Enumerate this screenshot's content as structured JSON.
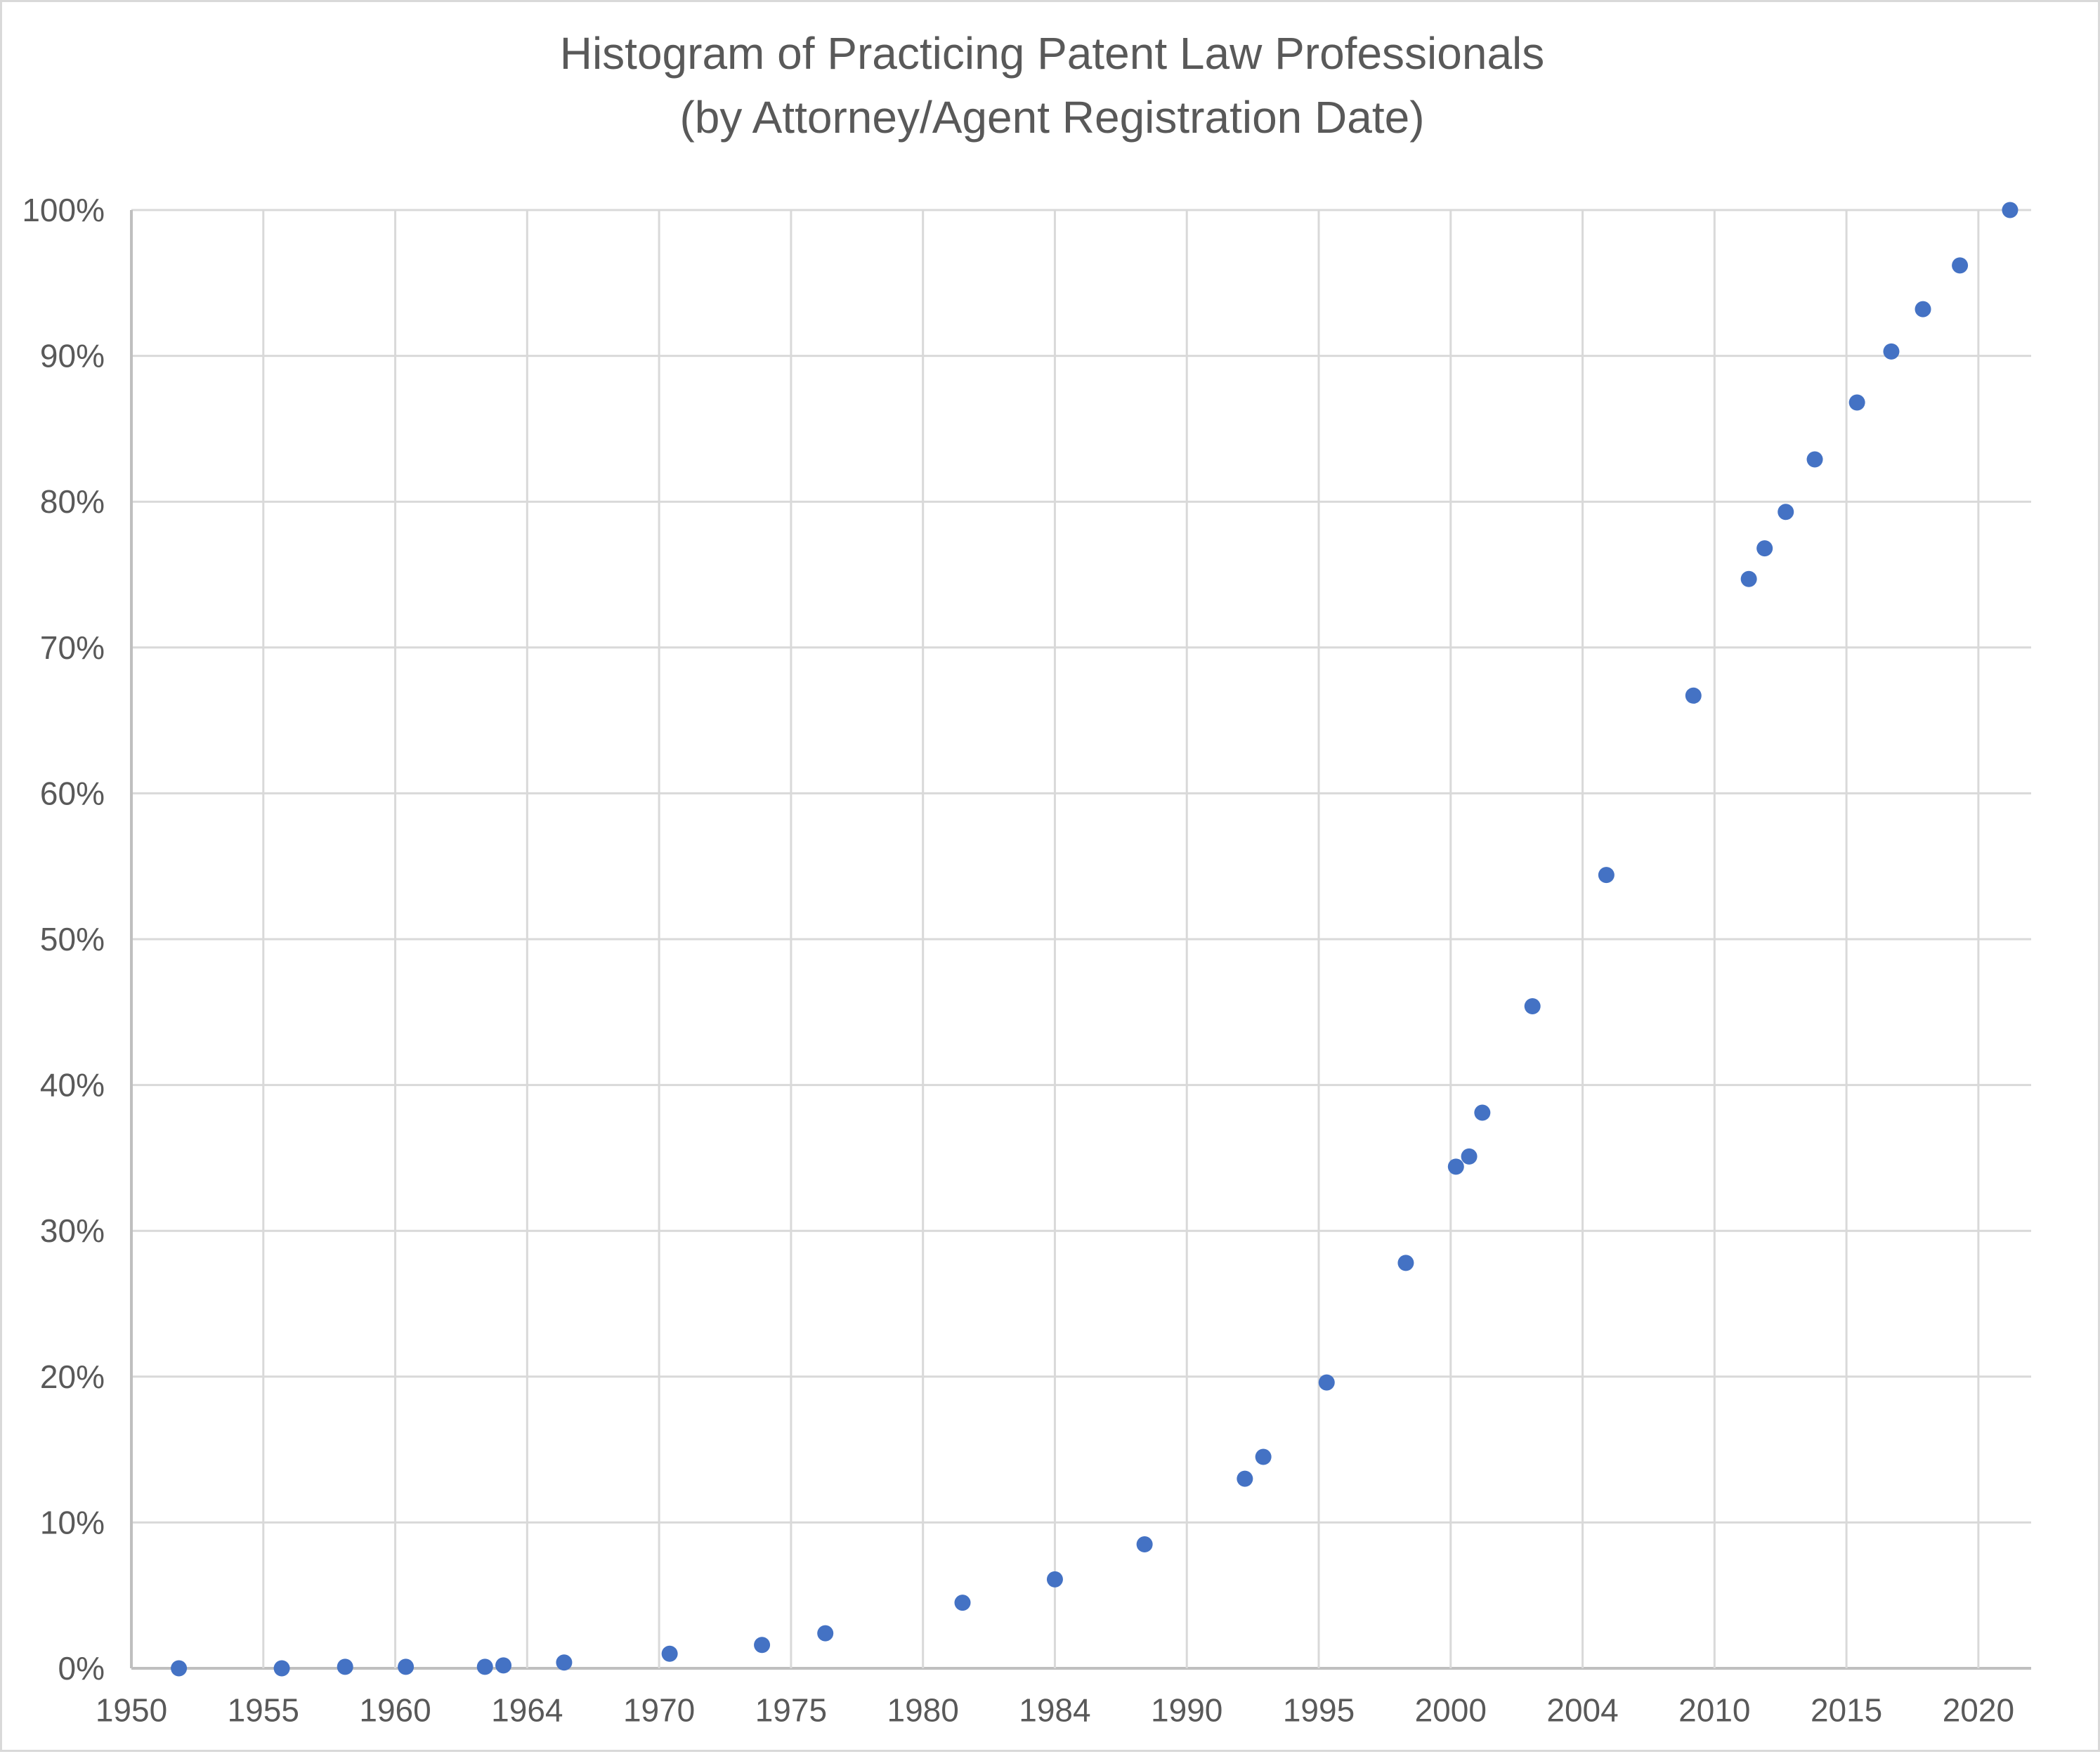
{
  "chart": {
    "title_line1": "Histogram of Practicing Patent Law Professionals",
    "title_line2": "(by Attorney/Agent Registration Date)"
  },
  "chart_data": {
    "type": "scatter",
    "title": "Histogram of Practicing Patent Law Professionals (by Attorney/Agent Registration Date)",
    "xlabel": "",
    "ylabel": "",
    "grid": true,
    "legend_position": "none",
    "x_range": [
      1950,
      2022
    ],
    "y_range": [
      0,
      100
    ],
    "y_tick_step": 10,
    "y_tick_labels": [
      "0%",
      "10%",
      "20%",
      "30%",
      "40%",
      "50%",
      "60%",
      "70%",
      "80%",
      "90%",
      "100%"
    ],
    "x_tick_labels": [
      "1950",
      "1955",
      "1960",
      "1964",
      "1970",
      "1975",
      "1980",
      "1984",
      "1990",
      "1995",
      "2000",
      "2004",
      "2010",
      "2015",
      "2020"
    ],
    "x_tick_years": [
      1950,
      1955,
      1960,
      1965,
      1970,
      1975,
      1980,
      1985,
      1990,
      1995,
      2000,
      2005,
      2010,
      2015,
      2020
    ],
    "points": [
      [
        1951.8,
        0.0
      ],
      [
        1955.7,
        0.0
      ],
      [
        1958.1,
        0.1
      ],
      [
        1960.4,
        0.1
      ],
      [
        1963.4,
        0.1
      ],
      [
        1964.1,
        0.2
      ],
      [
        1966.4,
        0.4
      ],
      [
        1970.4,
        1.0
      ],
      [
        1973.9,
        1.6
      ],
      [
        1976.3,
        2.4
      ],
      [
        1981.5,
        4.5
      ],
      [
        1985.0,
        6.1
      ],
      [
        1988.4,
        8.5
      ],
      [
        1992.2,
        13.0
      ],
      [
        1992.9,
        14.5
      ],
      [
        1995.3,
        19.6
      ],
      [
        1998.3,
        27.8
      ],
      [
        2000.2,
        34.4
      ],
      [
        2000.7,
        35.1
      ],
      [
        2001.2,
        38.1
      ],
      [
        2003.1,
        45.4
      ],
      [
        2005.9,
        54.4
      ],
      [
        2009.2,
        66.7
      ],
      [
        2011.3,
        74.7
      ],
      [
        2011.9,
        76.8
      ],
      [
        2012.7,
        79.3
      ],
      [
        2013.8,
        82.9
      ],
      [
        2015.4,
        86.8
      ],
      [
        2016.7,
        90.3
      ],
      [
        2017.9,
        93.2
      ],
      [
        2019.3,
        96.2
      ],
      [
        2021.2,
        100.0
      ]
    ],
    "colors": {
      "marker": "#4472C4",
      "grid": "#D9D9D9",
      "axis": "#BFBFBF",
      "text": "#595959",
      "background": "#FFFFFF",
      "border": "#D9D9D9"
    }
  }
}
